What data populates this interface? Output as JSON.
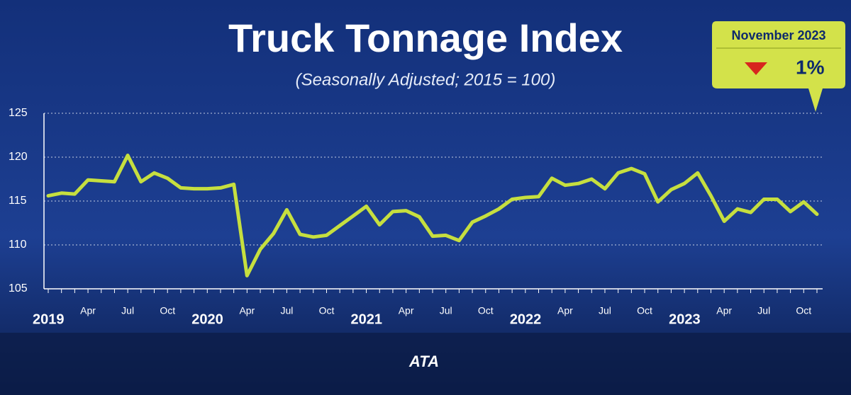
{
  "chart_data": {
    "type": "line",
    "title": "Truck Tonnage Index",
    "subtitle": "(Seasonally Adjusted; 2015 = 100)",
    "categories": [
      "2019",
      null,
      null,
      "Apr",
      null,
      null,
      "Jul",
      null,
      null,
      "Oct",
      null,
      null,
      "2020",
      null,
      null,
      "Apr",
      null,
      null,
      "Jul",
      null,
      null,
      "Oct",
      null,
      null,
      "2021",
      null,
      null,
      "Apr",
      null,
      null,
      "Jul",
      null,
      null,
      "Oct",
      null,
      null,
      "2022",
      null,
      null,
      "Apr",
      null,
      null,
      "Jul",
      null,
      null,
      "Oct",
      null,
      null,
      "2023",
      null,
      null,
      "Apr",
      null,
      null,
      "Jul",
      null,
      null,
      "Oct",
      null
    ],
    "values": [
      115.6,
      115.9,
      115.8,
      117.4,
      117.3,
      117.2,
      120.2,
      117.2,
      118.2,
      117.6,
      116.5,
      116.4,
      116.4,
      116.5,
      116.9,
      106.5,
      109.5,
      111.3,
      114.0,
      111.2,
      110.9,
      111.1,
      112.2,
      113.3,
      114.4,
      112.3,
      113.8,
      113.9,
      113.2,
      111.0,
      111.1,
      110.5,
      112.6,
      113.3,
      114.1,
      115.2,
      115.4,
      115.5,
      117.6,
      116.8,
      117.0,
      117.5,
      116.4,
      118.2,
      118.7,
      118.1,
      114.9,
      116.3,
      117.0,
      118.2,
      115.6,
      112.7,
      114.1,
      113.7,
      115.2,
      115.2,
      113.8,
      114.9,
      113.5
    ],
    "color": "#c6df3f",
    "ylim": [
      105,
      125
    ],
    "yticks": [
      105,
      110,
      115,
      120,
      125
    ],
    "grid": true,
    "annotation": {
      "period": "November 2023",
      "change": "1%",
      "trend": "down"
    },
    "logo": "ATA"
  }
}
